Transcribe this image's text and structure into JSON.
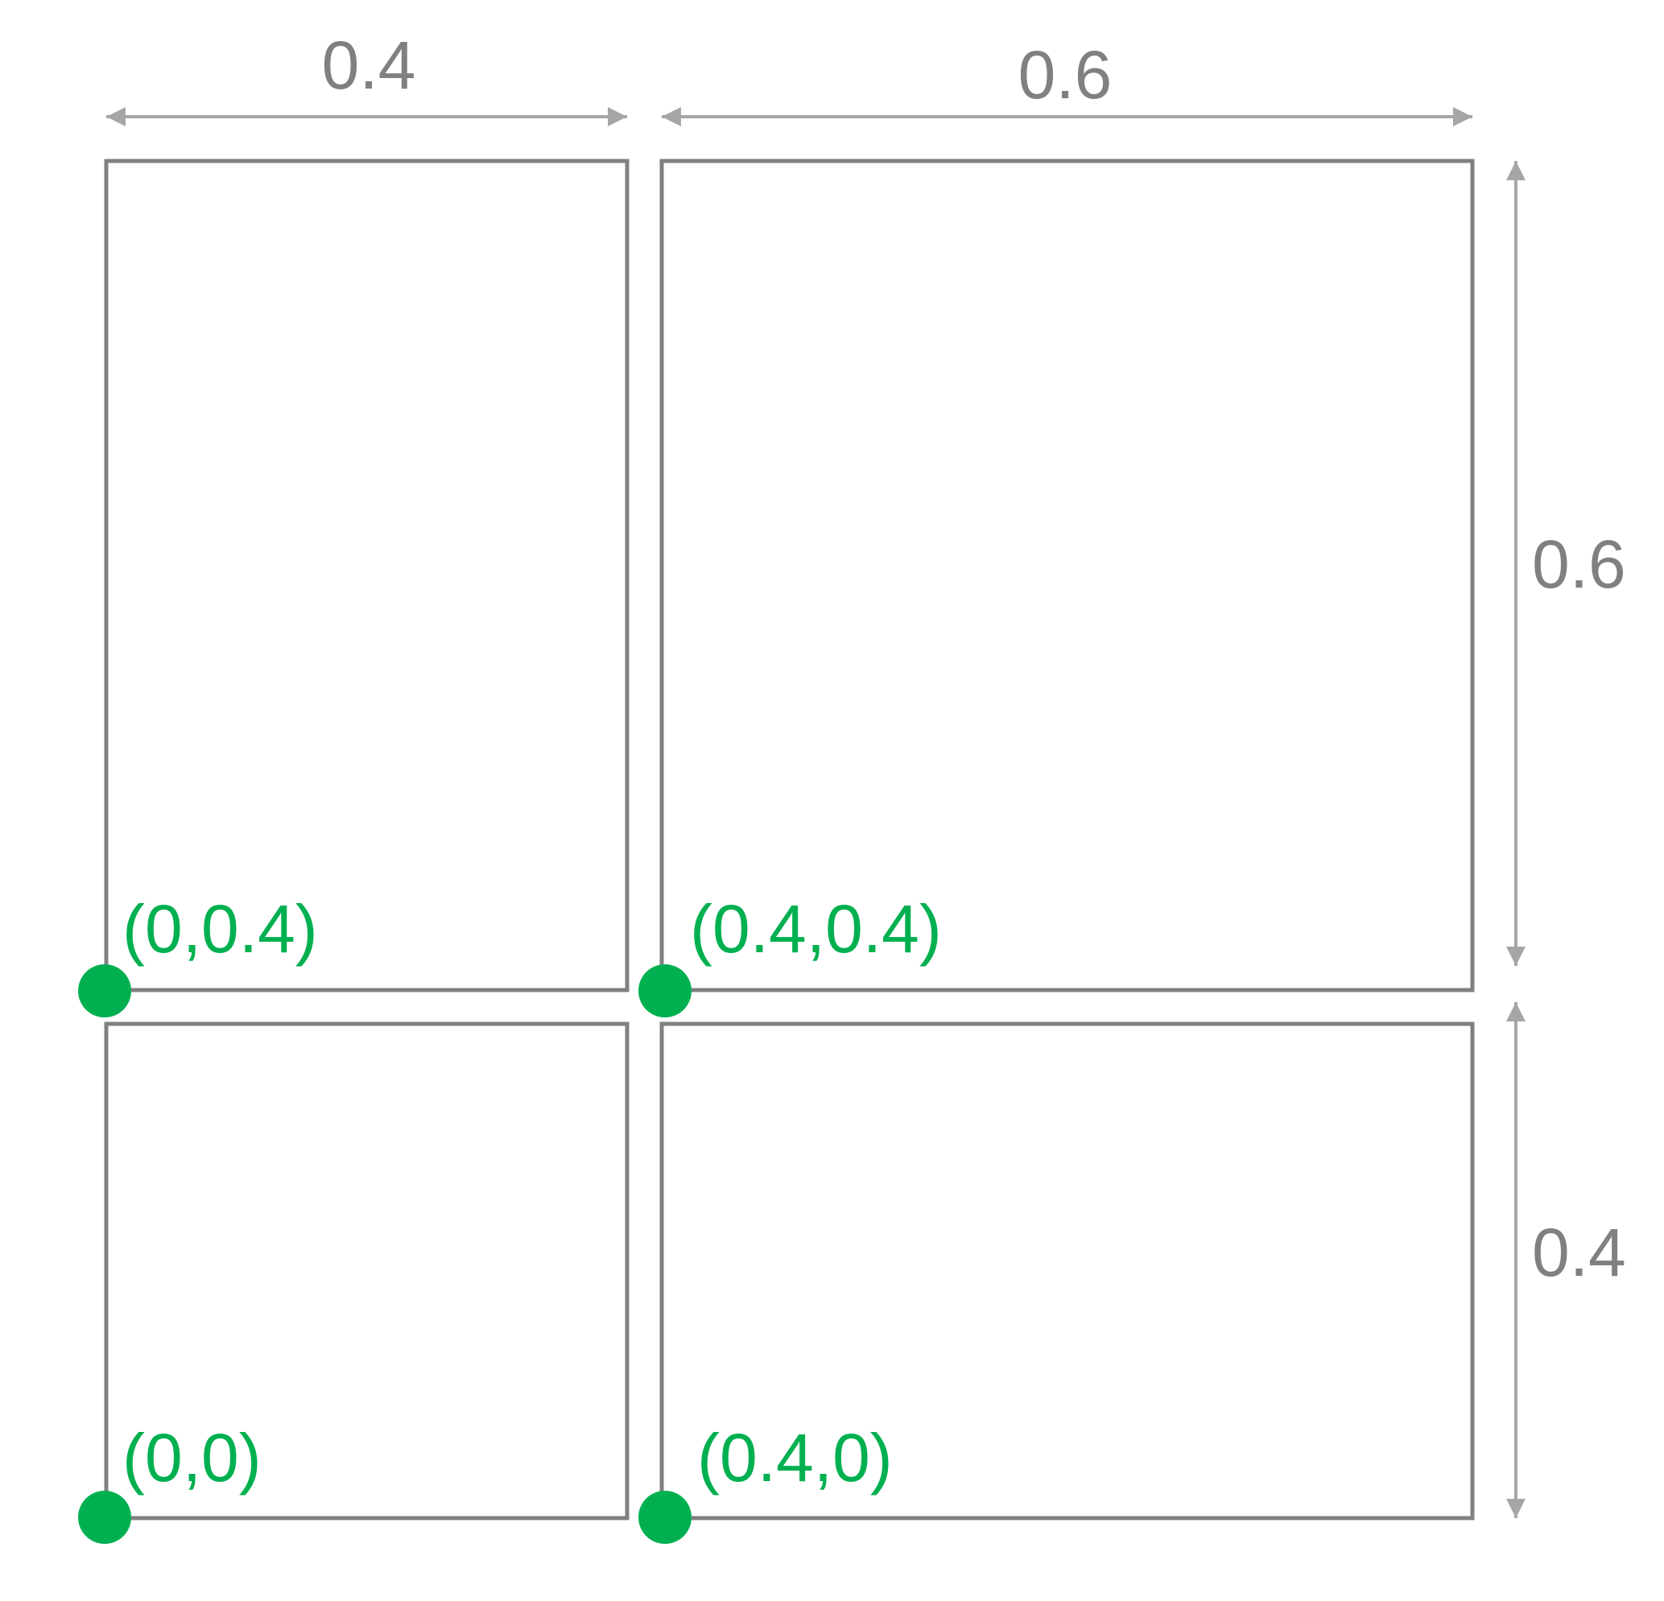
{
  "colors": {
    "cell_border": "#808080",
    "dimension_line": "#a6a6a6",
    "dimension_text": "#808080",
    "point": "#00b050"
  },
  "dimensions": {
    "top_left_width": "0.4",
    "top_right_width": "0.6",
    "right_upper_height": "0.6",
    "right_lower_height": "0.4"
  },
  "points": {
    "origin": "(0,0)",
    "left_upper": "(0,0.4)",
    "right_lower": "(0.4,0)",
    "right_upper": "(0.4,0.4)"
  }
}
